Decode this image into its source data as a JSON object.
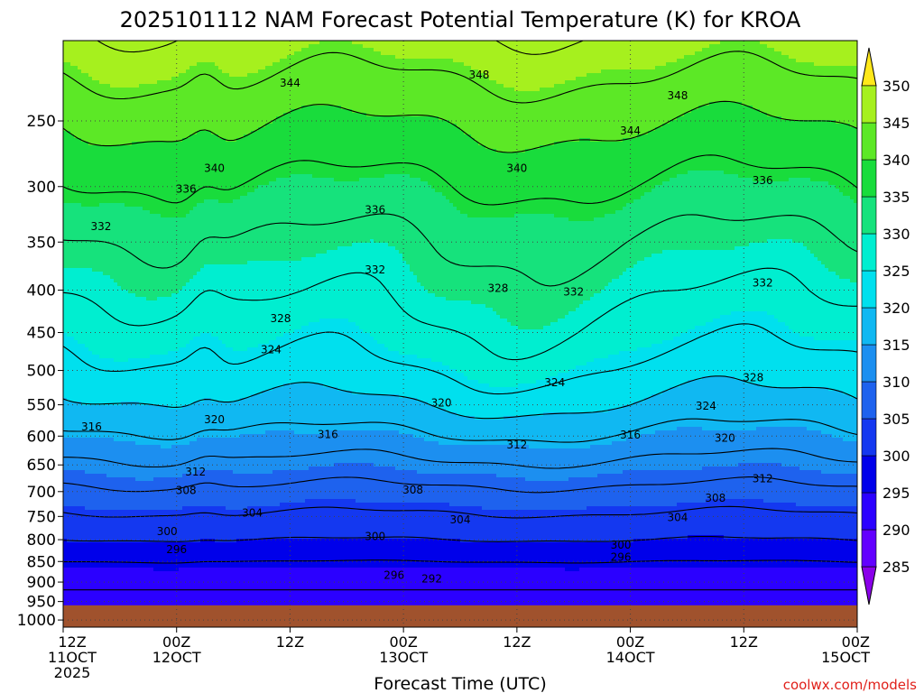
{
  "chart_data": {
    "type": "heatmap",
    "title": "2025101112 NAM Forecast Potential Temperature (K) for KROA",
    "xlabel": "Forecast Time (UTC)",
    "ylabel": "",
    "credit": "coolwx.com/models",
    "x_unit": "hours from 12Z 11OCT 2025",
    "x_range": [
      0,
      84
    ],
    "x_ticks": [
      {
        "value": 0,
        "line1": "12Z",
        "line2": "11OCT",
        "line3": "2025"
      },
      {
        "value": 12,
        "line1": "00Z",
        "line2": "12OCT",
        "line3": ""
      },
      {
        "value": 24,
        "line1": "12Z",
        "line2": "",
        "line3": ""
      },
      {
        "value": 36,
        "line1": "00Z",
        "line2": "13OCT",
        "line3": ""
      },
      {
        "value": 48,
        "line1": "12Z",
        "line2": "",
        "line3": ""
      },
      {
        "value": 60,
        "line1": "00Z",
        "line2": "14OCT",
        "line3": ""
      },
      {
        "value": 72,
        "line1": "12Z",
        "line2": "",
        "line3": ""
      },
      {
        "value": 84,
        "line1": "00Z",
        "line2": "15OCT",
        "line3": ""
      }
    ],
    "y_unit": "hPa",
    "y_scale": "log",
    "y_range": [
      200,
      1020
    ],
    "y_ticks": [
      250,
      300,
      350,
      400,
      450,
      500,
      550,
      600,
      650,
      700,
      750,
      800,
      850,
      900,
      950,
      1000
    ],
    "ground_pressure": 960,
    "grid": true,
    "colorbar": {
      "placement": "right",
      "levels": [
        285,
        290,
        295,
        300,
        305,
        310,
        315,
        320,
        325,
        330,
        335,
        340,
        345,
        350
      ],
      "colors": [
        "#8a00ea",
        "#6200ff",
        "#2b00ff",
        "#0000ea",
        "#1438f0",
        "#1e62ee",
        "#1c8ff0",
        "#10b8f2",
        "#00e0ee",
        "#00eed0",
        "#16e27c",
        "#19dc3c",
        "#5ce826",
        "#a6f01e",
        "#e6f21a",
        "#ffe81a"
      ]
    },
    "contour_levels": [
      292,
      296,
      300,
      304,
      308,
      312,
      316,
      320,
      324,
      328,
      332,
      336,
      340,
      344,
      348
    ],
    "profile_by_level": [
      {
        "pressure": 940,
        "theta": 291
      },
      {
        "pressure": 900,
        "theta": 293
      },
      {
        "pressure": 850,
        "theta": 296
      },
      {
        "pressure": 800,
        "theta": 300
      },
      {
        "pressure": 750,
        "theta": 303.5
      },
      {
        "pressure": 700,
        "theta": 307
      },
      {
        "pressure": 650,
        "theta": 311
      },
      {
        "pressure": 600,
        "theta": 315
      },
      {
        "pressure": 550,
        "theta": 319
      },
      {
        "pressure": 500,
        "theta": 322.5
      },
      {
        "pressure": 450,
        "theta": 325.5
      },
      {
        "pressure": 400,
        "theta": 328.5
      },
      {
        "pressure": 350,
        "theta": 331.5
      },
      {
        "pressure": 300,
        "theta": 335.5
      },
      {
        "pressure": 250,
        "theta": 340.5
      },
      {
        "pressure": 200,
        "theta": 347
      }
    ],
    "contour_labels": [
      {
        "text": "344",
        "x": 24,
        "p": 225
      },
      {
        "text": "348",
        "x": 44,
        "p": 220
      },
      {
        "text": "348",
        "x": 65,
        "p": 233
      },
      {
        "text": "344",
        "x": 60,
        "p": 257
      },
      {
        "text": "340",
        "x": 16,
        "p": 285
      },
      {
        "text": "340",
        "x": 48,
        "p": 285
      },
      {
        "text": "336",
        "x": 13,
        "p": 302
      },
      {
        "text": "336",
        "x": 33,
        "p": 320
      },
      {
        "text": "336",
        "x": 74,
        "p": 295
      },
      {
        "text": "332",
        "x": 4,
        "p": 335
      },
      {
        "text": "332",
        "x": 33,
        "p": 378
      },
      {
        "text": "328",
        "x": 46,
        "p": 398
      },
      {
        "text": "332",
        "x": 54,
        "p": 402
      },
      {
        "text": "332",
        "x": 74,
        "p": 392
      },
      {
        "text": "328",
        "x": 23,
        "p": 433
      },
      {
        "text": "324",
        "x": 22,
        "p": 472
      },
      {
        "text": "324",
        "x": 52,
        "p": 517
      },
      {
        "text": "328",
        "x": 73,
        "p": 510
      },
      {
        "text": "320",
        "x": 40,
        "p": 547
      },
      {
        "text": "324",
        "x": 68,
        "p": 552
      },
      {
        "text": "316",
        "x": 3,
        "p": 585
      },
      {
        "text": "320",
        "x": 16,
        "p": 573
      },
      {
        "text": "316",
        "x": 28,
        "p": 597
      },
      {
        "text": "316",
        "x": 60,
        "p": 598
      },
      {
        "text": "320",
        "x": 70,
        "p": 603
      },
      {
        "text": "312",
        "x": 48,
        "p": 615
      },
      {
        "text": "312",
        "x": 14,
        "p": 663
      },
      {
        "text": "312",
        "x": 74,
        "p": 675
      },
      {
        "text": "308",
        "x": 13,
        "p": 698
      },
      {
        "text": "308",
        "x": 37,
        "p": 697
      },
      {
        "text": "308",
        "x": 69,
        "p": 713
      },
      {
        "text": "304",
        "x": 20,
        "p": 743
      },
      {
        "text": "304",
        "x": 42,
        "p": 757
      },
      {
        "text": "304",
        "x": 65,
        "p": 752
      },
      {
        "text": "300",
        "x": 11,
        "p": 782
      },
      {
        "text": "300",
        "x": 33,
        "p": 793
      },
      {
        "text": "300",
        "x": 59,
        "p": 812
      },
      {
        "text": "296",
        "x": 12,
        "p": 822
      },
      {
        "text": "296",
        "x": 59,
        "p": 840
      },
      {
        "text": "296",
        "x": 35,
        "p": 883
      },
      {
        "text": "292",
        "x": 39,
        "p": 892
      }
    ]
  }
}
